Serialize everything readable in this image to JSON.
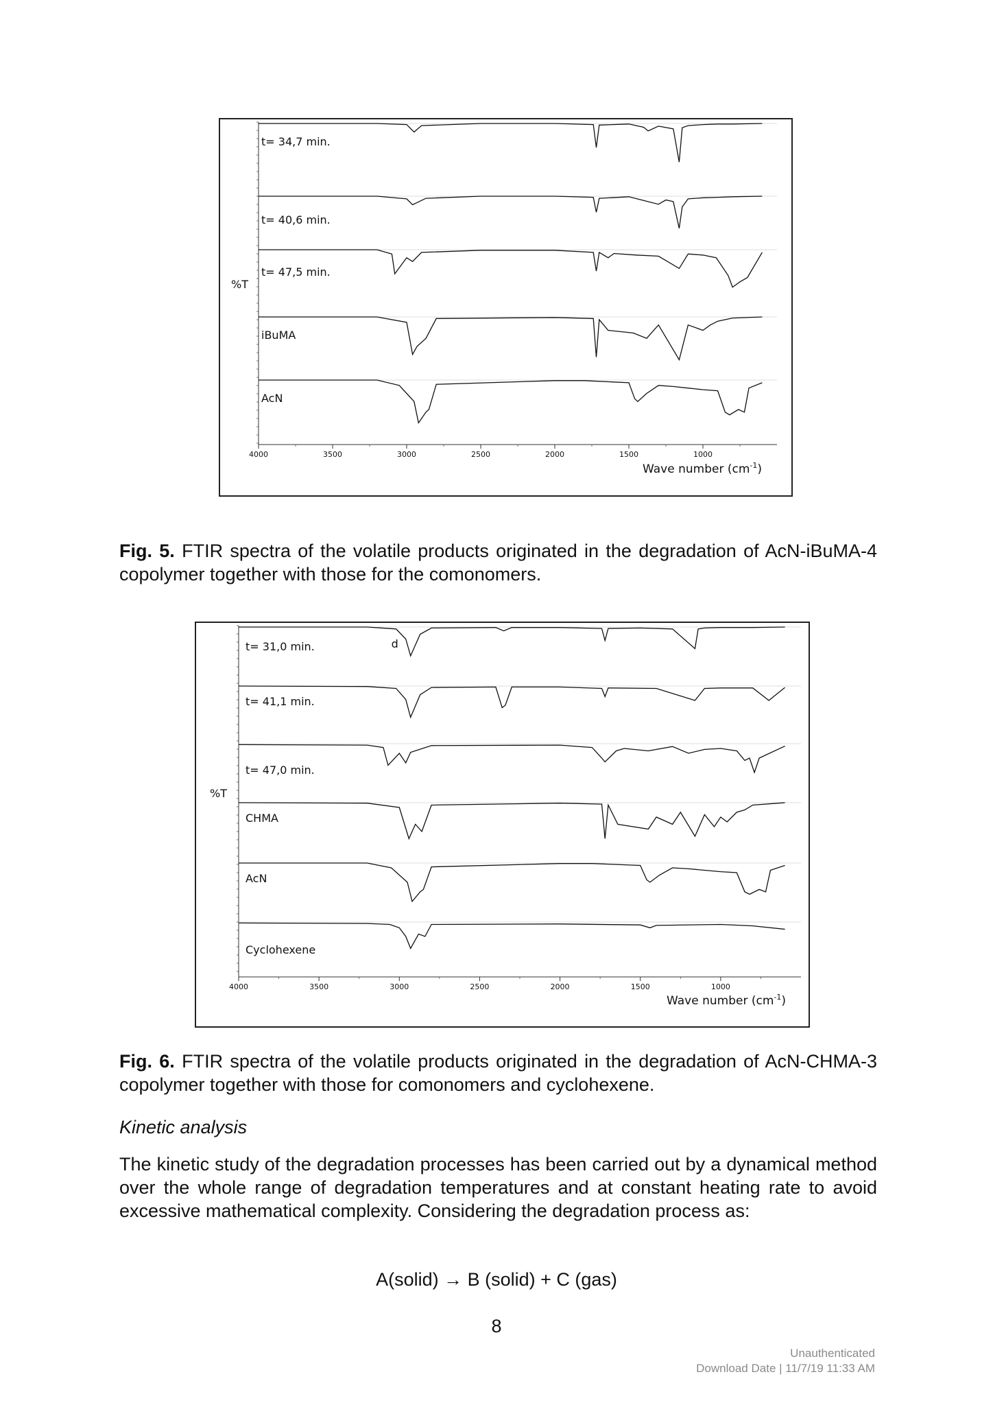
{
  "figures": [
    {
      "id": "fig5",
      "ylabel": "%T",
      "xlabel": "Wave number (cm",
      "xlabel_sup": "-1",
      "xlabel_end": ")",
      "xticks": [
        "4000",
        "3500",
        "3000",
        "2500",
        "2000",
        "1500",
        "1000"
      ],
      "chart_data": {
        "type": "line",
        "xlabel": "Wave number (cm-1)",
        "ylabel": "%T",
        "xlim": [
          4000,
          500
        ],
        "series": [
          {
            "name": "t= 34,7 min.",
            "x": [
              4000,
              3200,
              3000,
              2950,
              2900,
              2500,
              2000,
              1740,
              1720,
              1700,
              1500,
              1400,
              1370,
              1300,
              1200,
              1160,
              1140,
              1100,
              1000,
              900,
              800,
              600
            ],
            "y": [
              100,
              100,
              98,
              84,
              96,
              100,
              100,
              98,
              55,
              97,
              99,
              93,
              86,
              95,
              90,
              28,
              92,
              96,
              98,
              99,
              99,
              100
            ]
          },
          {
            "name": "t= 40,6 min.",
            "x": [
              4000,
              3200,
              3000,
              2960,
              2900,
              2870,
              2500,
              2000,
              1740,
              1720,
              1700,
              1500,
              1400,
              1300,
              1250,
              1200,
              1160,
              1140,
              1100,
              1000,
              900,
              800,
              600
            ],
            "y": [
              100,
              100,
              95,
              84,
              92,
              96,
              100,
              100,
              98,
              70,
              96,
              99,
              92,
              85,
              93,
              90,
              40,
              80,
              95,
              97,
              98,
              99,
              100
            ]
          },
          {
            "name": "t= 47,5 min.",
            "x": [
              4000,
              3200,
              3100,
              3080,
              3000,
              2960,
              2900,
              2500,
              2000,
              1740,
              1720,
              1700,
              1640,
              1600,
              1450,
              1300,
              1160,
              1100,
              1000,
              910,
              830,
              800,
              750,
              700,
              600
            ],
            "y": [
              100,
              100,
              92,
              55,
              85,
              78,
              95,
              99,
              99,
              95,
              60,
              95,
              85,
              93,
              90,
              88,
              65,
              92,
              90,
              85,
              52,
              30,
              40,
              48,
              95
            ]
          },
          {
            "name": "iBuMA",
            "x": [
              4000,
              3200,
              3000,
              2960,
              2930,
              2870,
              2800,
              2000,
              1740,
              1720,
              1700,
              1640,
              1470,
              1380,
              1300,
              1160,
              1100,
              1000,
              950,
              900,
              800,
              600
            ],
            "y": [
              100,
              100,
              90,
              30,
              45,
              60,
              97,
              99,
              97,
              25,
              95,
              75,
              70,
              60,
              85,
              20,
              85,
              75,
              85,
              92,
              98,
              100
            ]
          },
          {
            "name": "AcN",
            "x": [
              4000,
              3200,
              3050,
              3000,
              2950,
              2920,
              2870,
              2850,
              2800,
              2000,
              1800,
              1500,
              1460,
              1440,
              1380,
              1300,
              1200,
              1100,
              1000,
              900,
              850,
              820,
              760,
              720,
              690,
              600
            ],
            "y": [
              100,
              100,
              90,
              75,
              60,
              20,
              40,
              45,
              92,
              99,
              99,
              95,
              65,
              60,
              75,
              90,
              88,
              85,
              82,
              80,
              40,
              35,
              45,
              40,
              85,
              95
            ]
          }
        ]
      }
    },
    {
      "id": "fig6",
      "ylabel": "%T",
      "xlabel": "Wave number (cm",
      "xlabel_sup": "-1",
      "xlabel_end": ")",
      "xticks": [
        "4000",
        "3500",
        "3000",
        "2500",
        "2000",
        "1500",
        "1000"
      ],
      "annotation": "d",
      "chart_data": {
        "type": "line",
        "xlabel": "Wave number (cm-1)",
        "ylabel": "%T",
        "xlim": [
          4000,
          500
        ],
        "series": [
          {
            "name": "t= 31,0 min.",
            "x": [
              4000,
              3200,
              3020,
              2960,
              2930,
              2870,
              2800,
              2400,
              2350,
              2300,
              2000,
              1740,
              1720,
              1700,
              1500,
              1300,
              1160,
              1140,
              1100,
              1000,
              800,
              600
            ],
            "y": [
              100,
              100,
              96,
              75,
              40,
              85,
              98,
              99,
              92,
              99,
              99,
              97,
              72,
              97,
              98,
              96,
              55,
              96,
              98,
              99,
              99,
              100
            ]
          },
          {
            "name": "t= 41,1 min.",
            "x": [
              4000,
              3200,
              3020,
              2960,
              2930,
              2870,
              2800,
              2400,
              2360,
              2340,
              2300,
              2000,
              1740,
              1720,
              1700,
              1400,
              1160,
              1100,
              1000,
              800,
              700,
              600
            ],
            "y": [
              100,
              99,
              95,
              72,
              35,
              82,
              97,
              98,
              55,
              60,
              98,
              98,
              95,
              78,
              96,
              95,
              70,
              95,
              96,
              96,
              70,
              97
            ]
          },
          {
            "name": "t= 47,0 min.",
            "x": [
              4000,
              3200,
              3100,
              3070,
              3000,
              2960,
              2930,
              2800,
              2000,
              1800,
              1740,
              1720,
              1650,
              1600,
              1450,
              1300,
              1200,
              1100,
              1000,
              900,
              850,
              820,
              790,
              760,
              600
            ],
            "y": [
              98,
              97,
              92,
              55,
              80,
              60,
              82,
              96,
              97,
              92,
              70,
              62,
              85,
              90,
              85,
              94,
              80,
              88,
              90,
              85,
              65,
              70,
              40,
              70,
              95
            ]
          },
          {
            "name": "CHMA",
            "x": [
              4000,
              3200,
              3000,
              2940,
              2900,
              2860,
              2800,
              2000,
              1740,
              1720,
              1700,
              1640,
              1450,
              1400,
              1300,
              1250,
              1160,
              1100,
              1040,
              1000,
              960,
              900,
              850,
              800,
              600
            ],
            "y": [
              100,
              99,
              90,
              25,
              55,
              40,
              95,
              99,
              97,
              25,
              95,
              55,
              45,
              70,
              55,
              80,
              30,
              75,
              50,
              70,
              60,
              80,
              85,
              95,
              100
            ]
          },
          {
            "name": "AcN",
            "x": [
              4000,
              3200,
              3050,
              3000,
              2950,
              2920,
              2870,
              2850,
              2800,
              2000,
              1800,
              1500,
              1460,
              1440,
              1380,
              1300,
              1200,
              1100,
              1000,
              900,
              850,
              820,
              760,
              720,
              690,
              600
            ],
            "y": [
              100,
              100,
              90,
              75,
              60,
              20,
              40,
              45,
              92,
              99,
              99,
              95,
              65,
              60,
              75,
              90,
              88,
              85,
              82,
              80,
              40,
              35,
              45,
              40,
              85,
              95
            ]
          },
          {
            "name": "Cyclohexene",
            "x": [
              4000,
              3200,
              3060,
              3000,
              2960,
              2930,
              2880,
              2840,
              2800,
              2000,
              1500,
              1440,
              1400,
              1000,
              800,
              600
            ],
            "y": [
              98,
              97,
              95,
              88,
              70,
              45,
              75,
              70,
              95,
              96,
              94,
              88,
              93,
              95,
              92,
              85
            ]
          }
        ]
      }
    }
  ],
  "captions": {
    "fig5_label": "Fig. 5.",
    "fig5_text": "FTIR spectra of the volatile products originated in the degradation of AcN-iBuMA-4 copolymer together with those for the comonomers.",
    "fig6_label": "Fig. 6.",
    "fig6_text": "FTIR spectra of the volatile products originated in the degradation of AcN-CHMA-3 copolymer together with those for comonomers and cyclohexene."
  },
  "section_heading": "Kinetic analysis",
  "paragraph": "The kinetic study of the degradation processes has been carried out by a dynamical method over the whole range of degradation temperatures and at constant heating rate to avoid excessive mathematical complexity. Considering the degradation process as:",
  "equation": "A(solid) → B (solid) + C (gas)",
  "page_number": "8",
  "footer": {
    "line1": "Unauthenticated",
    "line2": "Download Date | 11/7/19 11:33 AM"
  }
}
